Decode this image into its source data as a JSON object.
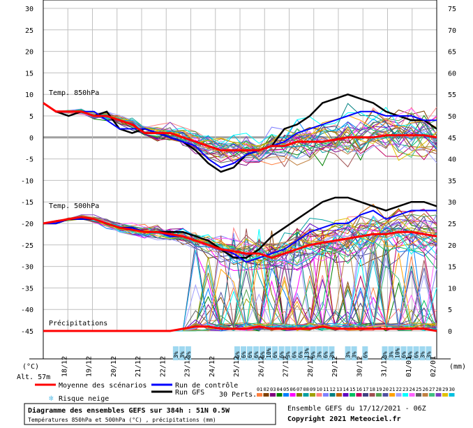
{
  "chart_data": {
    "type": "line",
    "run_info": "Ensemble GEFS du 17/12/2021 - 06Z",
    "copyright": "Copyright 2021 Meteociel.fr",
    "title_line1": "Diagramme des ensembles GEFS sur 384h : 51N 0.5W",
    "title_line2": "Températures 850hPa et 500hPa (°C) , précipitations (mm)",
    "left_unit": "(°C)",
    "right_unit": "(mm)",
    "altitude": "Alt. 57m",
    "left_ticks": [
      "30",
      "25",
      "20",
      "15",
      "10",
      "5",
      "0",
      "-5",
      "-10",
      "-15",
      "-20",
      "-25",
      "-30",
      "-35",
      "-40",
      "-45"
    ],
    "right_ticks": [
      "75",
      "70",
      "65",
      "60",
      "55",
      "50",
      "45",
      "40",
      "35",
      "30",
      "25",
      "20",
      "15",
      "10",
      "5",
      "0"
    ],
    "x_dates": [
      "18/12",
      "19/12",
      "20/12",
      "21/12",
      "22/12",
      "23/12",
      "24/12",
      "25/12",
      "26/12",
      "27/12",
      "28/12",
      "29/12",
      "30/12",
      "31/12",
      "01/01",
      "02/01"
    ],
    "panel_labels": {
      "t850": "Temp. 850hPa",
      "t500": "Temp. 500hPa",
      "precip": "Précipitations"
    },
    "snow_risk": [
      {
        "day": 5.5,
        "values": [
          "3%",
          "3%",
          "3%"
        ]
      },
      {
        "day": 8.0,
        "values": [
          "6%",
          "6%",
          "6%",
          "6%",
          "6%",
          "10%",
          "6%"
        ]
      },
      {
        "day": 9.8,
        "values": [
          "6%",
          "3%",
          "6%",
          "6%",
          "13%",
          "6%",
          "3%",
          "6%",
          "3%"
        ]
      },
      {
        "day": 12.5,
        "values": [
          "3%",
          "3%"
        ]
      },
      {
        "day": 13.2,
        "values": [
          "6%"
        ]
      },
      {
        "day": 14.0,
        "values": [
          "3%",
          "3%",
          "10%",
          "6%",
          "6%",
          "6%",
          "3%",
          "3%"
        ]
      }
    ],
    "legend": {
      "mean": "Moyenne des scénarios",
      "control": "Run de contrôle",
      "gfs": "Run GFS",
      "perts": "30 Perts.",
      "snow": "Risque neige",
      "members": [
        "01",
        "02",
        "03",
        "04",
        "05",
        "06",
        "07",
        "08",
        "09",
        "10",
        "11",
        "12",
        "13",
        "14",
        "15",
        "16",
        "17",
        "18",
        "19",
        "20",
        "21",
        "22",
        "23",
        "24",
        "25",
        "26",
        "27",
        "28",
        "29",
        "30"
      ]
    },
    "colors": {
      "mean": "#ff0000",
      "control": "#0000ff",
      "gfs": "#000000",
      "grid": "#c0c0c0",
      "zero": "#a0a0a0",
      "snow": "#9fd8f0",
      "members": [
        "#ff8040",
        "#804000",
        "#800080",
        "#008000",
        "#0080ff",
        "#ff00ff",
        "#808000",
        "#00a0a0",
        "#a0a000",
        "#ff8080",
        "#8080ff",
        "#008080",
        "#c06000",
        "#6000c0",
        "#00c060",
        "#c00060",
        "#404080",
        "#a05050",
        "#50a050",
        "#5050a0",
        "#ffa000",
        "#a0a0ff",
        "#00ffff",
        "#ff60ff",
        "#606060",
        "#c08040",
        "#40c080",
        "#8040c0",
        "#e0c000",
        "#00c0e0"
      ]
    },
    "mean_850": [
      8,
      6,
      6,
      6,
      5,
      5,
      4,
      3,
      1,
      1,
      1,
      0,
      -1,
      -2,
      -3,
      -3,
      -3,
      -3,
      -2,
      -2,
      -1,
      -1,
      -1,
      -0.5,
      0,
      0,
      0,
      0.5,
      0.5,
      0.5,
      0.5,
      0
    ],
    "control_850": [
      8,
      6,
      6,
      6,
      6,
      4,
      2,
      2,
      2,
      1,
      0,
      -1,
      -2,
      -5,
      -7,
      -6,
      -4,
      -3,
      -2,
      -1,
      1,
      2,
      3,
      4,
      5,
      6,
      6,
      5,
      5,
      5,
      4,
      4
    ],
    "gfs_850": [
      8,
      6,
      5,
      6,
      5,
      6,
      2,
      1,
      2,
      1,
      0,
      -1,
      -3,
      -6,
      -8,
      -7,
      -4,
      -3,
      -2,
      2,
      3,
      5,
      8,
      9,
      10,
      9,
      8,
      6,
      5,
      4,
      4,
      2
    ],
    "mean_500": [
      -20,
      -19.5,
      -19,
      -18.5,
      -19,
      -20,
      -21,
      -21.5,
      -22,
      -22,
      -22.5,
      -23,
      -24,
      -25,
      -26,
      -26.5,
      -27,
      -27,
      -28,
      -27,
      -26,
      -25,
      -24.5,
      -24,
      -23.5,
      -23,
      -22.5,
      -22.5,
      -22,
      -22,
      -22.5,
      -23
    ],
    "control_500": [
      -20,
      -20,
      -19,
      -19,
      -19,
      -20,
      -21,
      -21,
      -22,
      -22,
      -23,
      -23,
      -24,
      -25,
      -26,
      -27,
      -29,
      -28,
      -27,
      -26,
      -24,
      -22,
      -21,
      -20,
      -20,
      -18,
      -17,
      -19,
      -18,
      -17,
      -17,
      -17
    ],
    "gfs_500": [
      -20,
      -20,
      -19,
      -19,
      -19,
      -20,
      -21,
      -21,
      -22,
      -22,
      -22,
      -22,
      -23,
      -24,
      -26,
      -28,
      -28,
      -26,
      -23,
      -21,
      -19,
      -17,
      -15,
      -14,
      -14,
      -15,
      -16,
      -17,
      -16,
      -15,
      -15,
      -16
    ],
    "mean_precip_mm": [
      0,
      0,
      0,
      0,
      0,
      0,
      0,
      0,
      0,
      0,
      0,
      0.5,
      1,
      1,
      0.5,
      0.5,
      0.5,
      1,
      0.5,
      0.5,
      0.5,
      0.5,
      1,
      0.5,
      0.5,
      0.5,
      0.5,
      0.5,
      0.5,
      0.5,
      0.5,
      0
    ]
  }
}
